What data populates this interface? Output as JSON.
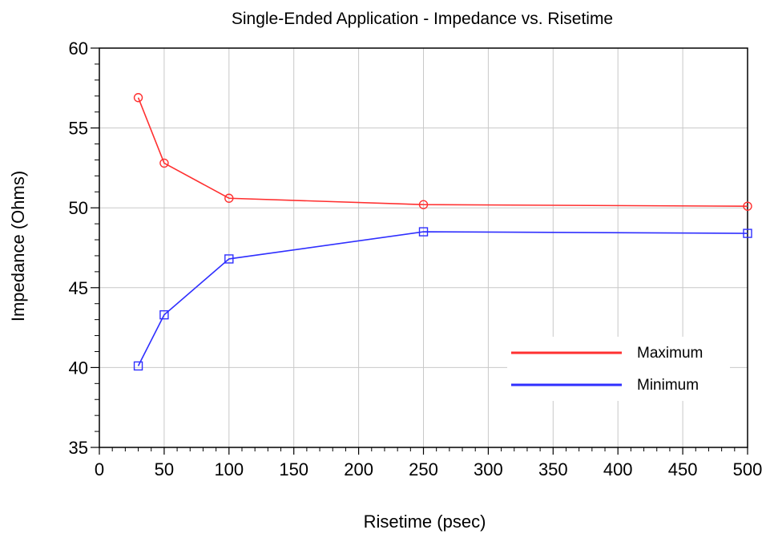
{
  "chart_data": {
    "type": "line",
    "title": "Single-Ended Application - Impedance vs. Risetime",
    "xlabel": "Risetime (psec)",
    "ylabel": "Impedance (Ohms)",
    "xlim": [
      0,
      500
    ],
    "ylim": [
      35,
      60
    ],
    "xticks": [
      "0",
      "50",
      "100",
      "150",
      "200",
      "250",
      "300",
      "350",
      "400",
      "450",
      "500"
    ],
    "yticks": [
      "35",
      "40",
      "45",
      "50",
      "55",
      "60"
    ],
    "grid": true,
    "legend_position": "lower-right",
    "series": [
      {
        "name": "Maximum",
        "color": "#ff3030",
        "marker": "circle",
        "x": [
          30,
          50,
          100,
          250,
          500
        ],
        "y": [
          56.9,
          52.8,
          50.6,
          50.2,
          50.1
        ]
      },
      {
        "name": "Minimum",
        "color": "#2f2fff",
        "marker": "square",
        "x": [
          30,
          50,
          100,
          250,
          500
        ],
        "y": [
          40.1,
          43.3,
          46.8,
          48.5,
          48.4
        ]
      }
    ]
  }
}
